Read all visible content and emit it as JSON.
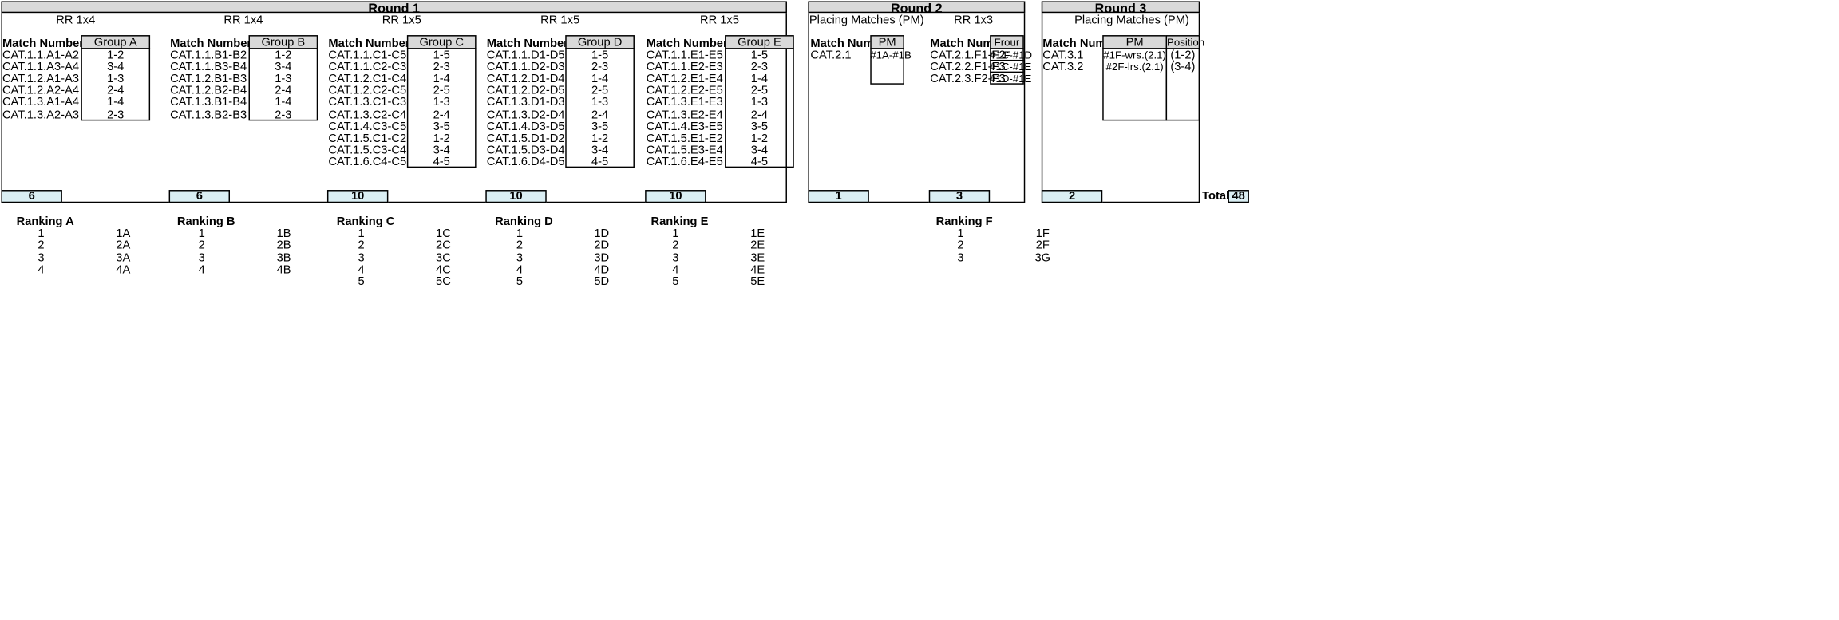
{
  "round1": {
    "title": "Round 1",
    "groups": [
      {
        "format": "RR 1x4",
        "match_header": "Match Number",
        "group_header": "Group A",
        "matches": [
          "CAT.1.1.A1-A2",
          "CAT.1.1.A3-A4",
          "CAT.1.2.A1-A3",
          "CAT.1.2.A2-A4",
          "CAT.1.3.A1-A4",
          "CAT.1.3.A2-A3"
        ],
        "pairs": [
          "1-2",
          "3-4",
          "1-3",
          "2-4",
          "1-4",
          "2-3"
        ],
        "total": "6"
      },
      {
        "format": "RR 1x4",
        "match_header": "Match Number",
        "group_header": "Group B",
        "matches": [
          "CAT.1.1.B1-B2",
          "CAT.1.1.B3-B4",
          "CAT.1.2.B1-B3",
          "CAT.1.2.B2-B4",
          "CAT.1.3.B1-B4",
          "CAT.1.3.B2-B3"
        ],
        "pairs": [
          "1-2",
          "3-4",
          "1-3",
          "2-4",
          "1-4",
          "2-3"
        ],
        "total": "6"
      },
      {
        "format": "RR 1x5",
        "match_header": "Match Number",
        "group_header": "Group C",
        "matches": [
          "CAT.1.1.C1-C5",
          "CAT.1.1.C2-C3",
          "CAT.1.2.C1-C4",
          "CAT.1.2.C2-C5",
          "CAT.1.3.C1-C3",
          "CAT.1.3.C2-C4",
          "CAT.1.4.C3-C5",
          "CAT.1.5.C1-C2",
          "CAT.1.5.C3-C4",
          "CAT.1.6.C4-C5"
        ],
        "pairs": [
          "1-5",
          "2-3",
          "1-4",
          "2-5",
          "1-3",
          "2-4",
          "3-5",
          "1-2",
          "3-4",
          "4-5"
        ],
        "total": "10"
      },
      {
        "format": "RR 1x5",
        "match_header": "Match Number",
        "group_header": "Group D",
        "matches": [
          "CAT.1.1.D1-D5",
          "CAT.1.1.D2-D3",
          "CAT.1.2.D1-D4",
          "CAT.1.2.D2-D5",
          "CAT.1.3.D1-D3",
          "CAT.1.3.D2-D4",
          "CAT.1.4.D3-D5",
          "CAT.1.5.D1-D2",
          "CAT.1.5.D3-D4",
          "CAT.1.6.D4-D5"
        ],
        "pairs": [
          "1-5",
          "2-3",
          "1-4",
          "2-5",
          "1-3",
          "2-4",
          "3-5",
          "1-2",
          "3-4",
          "4-5"
        ],
        "total": "10"
      },
      {
        "format": "RR 1x5",
        "match_header": "Match Number",
        "group_header": "Group E",
        "matches": [
          "CAT.1.1.E1-E5",
          "CAT.1.1.E2-E3",
          "CAT.1.2.E1-E4",
          "CAT.1.2.E2-E5",
          "CAT.1.3.E1-E3",
          "CAT.1.3.E2-E4",
          "CAT.1.4.E3-E5",
          "CAT.1.5.E1-E2",
          "CAT.1.5.E3-E4",
          "CAT.1.6.E4-E5"
        ],
        "pairs": [
          "1-5",
          "2-3",
          "1-4",
          "2-5",
          "1-3",
          "2-4",
          "3-5",
          "1-2",
          "3-4",
          "4-5"
        ],
        "total": "10"
      }
    ]
  },
  "round2": {
    "title": "Round 2",
    "pm_label": "Placing Matches (PM)",
    "rr_label": "RR 1x3",
    "pm": {
      "match_header": "Match Number",
      "col_header": "PM",
      "matches": [
        "CAT.2.1"
      ],
      "values": [
        "#1A-#1B"
      ],
      "total": "1"
    },
    "rr": {
      "match_header": "Match Number",
      "col_header": "Frour F",
      "matches": [
        "CAT.2.1.F1-F2",
        "CAT.2.2.F1-F3",
        "CAT.2.3.F2-F3"
      ],
      "values": [
        "#1C-#1D",
        "#1C-#1E",
        "#1D-#1E"
      ],
      "total": "3"
    }
  },
  "round3": {
    "title": "Round 3",
    "pm_label": "Placing Matches (PM)",
    "match_header": "Match Number",
    "pm_header": "PM",
    "position_header": "Position",
    "matches": [
      "CAT.3.1",
      "CAT.3.2"
    ],
    "pm": [
      "#1F-wrs.(2.1)",
      "#2F-lrs.(2.1)"
    ],
    "positions": [
      "(1-2)",
      "(3-4)"
    ],
    "total": "2"
  },
  "grand_total": {
    "label": "Total",
    "value": "48"
  },
  "rankings": [
    {
      "title": "Ranking A",
      "places": [
        "1",
        "2",
        "3",
        "4"
      ],
      "codes": [
        "1A",
        "2A",
        "3A",
        "4A"
      ]
    },
    {
      "title": "Ranking B",
      "places": [
        "1",
        "2",
        "3",
        "4"
      ],
      "codes": [
        "1B",
        "2B",
        "3B",
        "4B"
      ]
    },
    {
      "title": "Ranking C",
      "places": [
        "1",
        "2",
        "3",
        "4",
        "5"
      ],
      "codes": [
        "1C",
        "2C",
        "3C",
        "4C",
        "5C"
      ]
    },
    {
      "title": "Ranking D",
      "places": [
        "1",
        "2",
        "3",
        "4",
        "5"
      ],
      "codes": [
        "1D",
        "2D",
        "3D",
        "4D",
        "5D"
      ]
    },
    {
      "title": "Ranking E",
      "places": [
        "1",
        "2",
        "3",
        "4",
        "5"
      ],
      "codes": [
        "1E",
        "2E",
        "3E",
        "4E",
        "5E"
      ]
    },
    {
      "title": "Ranking F",
      "places": [
        "1",
        "2",
        "3"
      ],
      "codes": [
        "1F",
        "2F",
        "3G"
      ]
    }
  ]
}
